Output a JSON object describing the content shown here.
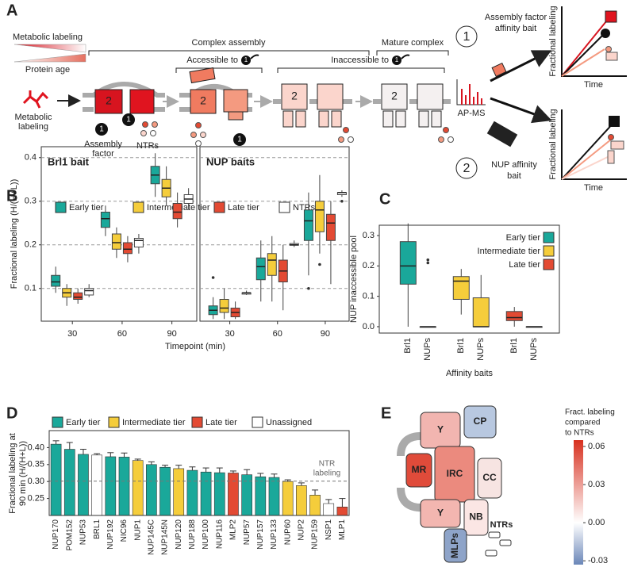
{
  "panel_a": {
    "letter": "A",
    "gradient_top": "Metabolic labeling",
    "gradient_bottom": "Protein age",
    "complex_assembly": "Complex assembly",
    "mature_complex": "Mature complex",
    "accessible": "Accessible to",
    "inaccessible": "Inaccessible to",
    "metabolic_labeling": [
      "Metabolic",
      "labeling"
    ],
    "assembly_factor": [
      "Assembly",
      "factor"
    ],
    "ntrs": "NTRs",
    "apms": "AP-MS",
    "bait_1": [
      "Assembly factor",
      "affinity bait"
    ],
    "bait_2": [
      "NUP affinity",
      "bait"
    ],
    "mini_ylabel": "Fractional labeling",
    "mini_xlabel": "Time",
    "numbers": [
      "1",
      "2"
    ]
  },
  "chart_data": [
    {
      "type": "boxplot",
      "panel": "B",
      "ylabel": "Fractional labeling (H/(H+L))",
      "xlabel": "Timepoint (min)",
      "categories": [
        30,
        60,
        90
      ],
      "ylim": [
        0.025,
        0.425
      ],
      "yticks": [
        0.1,
        0.2,
        0.3,
        0.4
      ],
      "grid": true,
      "series": [
        {
          "name": "Early tier",
          "color": "#1aa89a"
        },
        {
          "name": "Intermediate tier",
          "color": "#f5cd3b"
        },
        {
          "name": "Late tier",
          "color": "#e34a33"
        },
        {
          "name": "NTRs",
          "color": "#ffffff"
        }
      ],
      "facets": [
        {
          "title": "Brl1 bait",
          "data": [
            {
              "low": [
                0.09,
                0.22,
                0.31
              ],
              "q1": [
                0.105,
                0.24,
                0.34
              ],
              "median": [
                0.115,
                0.26,
                0.36
              ],
              "q3": [
                0.13,
                0.275,
                0.38
              ],
              "high": [
                0.15,
                0.29,
                0.41
              ],
              "outliers": [
                [],
                [],
                []
              ]
            },
            {
              "low": [
                0.06,
                0.17,
                0.29
              ],
              "q1": [
                0.08,
                0.19,
                0.31
              ],
              "median": [
                0.09,
                0.205,
                0.33
              ],
              "q3": [
                0.1,
                0.225,
                0.35
              ],
              "high": [
                0.11,
                0.24,
                0.38
              ],
              "outliers": [
                [],
                [],
                []
              ]
            },
            {
              "low": [
                0.065,
                0.16,
                0.24
              ],
              "q1": [
                0.075,
                0.18,
                0.26
              ],
              "median": [
                0.08,
                0.19,
                0.275
              ],
              "q3": [
                0.09,
                0.205,
                0.295
              ],
              "high": [
                0.1,
                0.22,
                0.32
              ],
              "outliers": [
                [],
                [],
                []
              ]
            },
            {
              "low": [
                0.08,
                0.18,
                0.28
              ],
              "q1": [
                0.085,
                0.195,
                0.295
              ],
              "median": [
                0.095,
                0.21,
                0.305
              ],
              "q3": [
                0.1,
                0.215,
                0.315
              ],
              "high": [
                0.11,
                0.225,
                0.33
              ],
              "outliers": [
                [],
                [],
                []
              ]
            }
          ]
        },
        {
          "title": "NUP baits",
          "data": [
            {
              "low": [
                0.03,
                0.07,
                0.13
              ],
              "q1": [
                0.04,
                0.12,
                0.21
              ],
              "median": [
                0.05,
                0.15,
                0.255
              ],
              "q3": [
                0.06,
                0.17,
                0.28
              ],
              "high": [
                0.08,
                0.21,
                0.32
              ],
              "outliers": [
                [
                  0.125
                ],
                [],
                [
                  0.1
                ]
              ]
            },
            {
              "low": [
                0.03,
                0.07,
                0.18
              ],
              "q1": [
                0.045,
                0.13,
                0.23
              ],
              "median": [
                0.055,
                0.165,
                0.28
              ],
              "q3": [
                0.075,
                0.18,
                0.3
              ],
              "high": [
                0.1,
                0.22,
                0.36
              ],
              "outliers": [
                [],
                [],
                [
                  0.155
                ]
              ]
            },
            {
              "low": [
                0.03,
                0.05,
                0.11
              ],
              "q1": [
                0.035,
                0.115,
                0.21
              ],
              "median": [
                0.045,
                0.14,
                0.25
              ],
              "q3": [
                0.055,
                0.165,
                0.27
              ],
              "high": [
                0.07,
                0.2,
                0.3
              ],
              "outliers": [
                [],
                [],
                []
              ]
            },
            {
              "low": [
                0.085,
                0.195,
                0.31
              ],
              "q1": [
                0.087,
                0.199,
                0.315
              ],
              "median": [
                0.09,
                0.2,
                0.32
              ],
              "q3": [
                0.09,
                0.203,
                0.32
              ],
              "high": [
                0.095,
                0.21,
                0.325
              ],
              "outliers": [
                [],
                [],
                [
                  0.3
                ]
              ]
            }
          ]
        }
      ]
    },
    {
      "type": "boxplot",
      "panel": "C",
      "ylabel": "NUP inaccessible pool",
      "xlabel": "Affinity baits",
      "categories": [
        "Brl1",
        "NUPs"
      ],
      "ylim": [
        -0.021,
        0.334
      ],
      "yticks": [
        {
          "value": 0,
          "label": "0.0"
        },
        0.1,
        0.2,
        0.3
      ],
      "legend": "upper right",
      "series": [
        {
          "name": "Early tier",
          "color": "#1aa89a",
          "low": [
            0,
            0
          ],
          "q1": [
            0.14,
            0
          ],
          "median": [
            0.2,
            0
          ],
          "q3": [
            0.28,
            0
          ],
          "high": [
            0.34,
            0
          ],
          "outliers": [
            [],
            [
              0.21,
              0.22
            ]
          ]
        },
        {
          "name": "Intermediate tier",
          "color": "#f5cd3b",
          "low": [
            0.04,
            0
          ],
          "q1": [
            0.09,
            0
          ],
          "median": [
            0.15,
            0
          ],
          "q3": [
            0.165,
            0.095
          ],
          "high": [
            0.19,
            0.17
          ],
          "outliers": [
            [],
            []
          ]
        },
        {
          "name": "Late tier",
          "color": "#e34a33",
          "low": [
            0,
            0
          ],
          "q1": [
            0.02,
            0
          ],
          "median": [
            0.03,
            0
          ],
          "q3": [
            0.05,
            0
          ],
          "high": [
            0.065,
            0
          ],
          "outliers": [
            [],
            []
          ]
        }
      ]
    },
    {
      "type": "bar",
      "panel": "D",
      "ylabel": [
        "Fractional labeling at",
        "90 min (H/(H+L))"
      ],
      "categories": [
        "NUP170",
        "POM152",
        "NUP53",
        "BRL1",
        "NUP192",
        "NIC96",
        "NUP1",
        "NUP145C",
        "NUP145N",
        "NUP120",
        "NUP188",
        "NUP100",
        "NUP116",
        "MLP2",
        "NUP57",
        "NUP157",
        "NUP133",
        "NUP60",
        "NUP2",
        "NUP159",
        "NSP1",
        "MLP1"
      ],
      "values": [
        0.41,
        0.395,
        0.38,
        0.378,
        0.373,
        0.372,
        0.362,
        0.35,
        0.342,
        0.338,
        0.333,
        0.328,
        0.326,
        0.325,
        0.32,
        0.314,
        0.312,
        0.3,
        0.288,
        0.26,
        0.235,
        0.225
      ],
      "errors": [
        0.01,
        0.02,
        0.015,
        0.004,
        0.012,
        0.012,
        0.004,
        0.008,
        0.006,
        0.01,
        0.01,
        0.012,
        0.014,
        0.006,
        0.015,
        0.01,
        0.01,
        0.005,
        0.008,
        0.015,
        0.012,
        0.025
      ],
      "colors": [
        "#1aa89a",
        "#1aa89a",
        "#1aa89a",
        "#ffffff",
        "#1aa89a",
        "#1aa89a",
        "#f5cd3b",
        "#1aa89a",
        "#1aa89a",
        "#f5cd3b",
        "#1aa89a",
        "#1aa89a",
        "#1aa89a",
        "#e34a33",
        "#1aa89a",
        "#1aa89a",
        "#1aa89a",
        "#f5cd3b",
        "#f5cd3b",
        "#f5cd3b",
        "#ffffff",
        "#e34a33"
      ],
      "legend": [
        {
          "name": "Early tier",
          "color": "#1aa89a"
        },
        {
          "name": "Intermediate tier",
          "color": "#f5cd3b"
        },
        {
          "name": "Late tier",
          "color": "#e34a33"
        },
        {
          "name": "Unassigned",
          "color": "#ffffff"
        }
      ],
      "ylim": [
        0.2,
        0.45
      ],
      "yticks": [
        0.25,
        {
          "value": 0.3,
          "label": "0.30"
        },
        0.35,
        {
          "value": 0.4,
          "label": "0.40"
        }
      ],
      "reference_line": {
        "value": 0.301,
        "label": [
          "NTR",
          "labeling"
        ]
      }
    }
  ],
  "panel_e": {
    "letter": "E",
    "blocks": [
      "Y",
      "CP",
      "MR",
      "IRC",
      "CC",
      "Y",
      "NB",
      "MLPs"
    ],
    "ntrs": "NTRs",
    "colorbar": {
      "title": [
        "Fract. labeling",
        "compared",
        "to NTRs"
      ],
      "lim": [
        -0.033,
        0.065
      ],
      "ticks": [
        0.06,
        0.03,
        {
          "value": 0,
          "label": "0.00"
        },
        -0.03
      ],
      "colors": [
        "#d7301f",
        "#ffffff",
        "#6a86b8"
      ]
    }
  }
}
